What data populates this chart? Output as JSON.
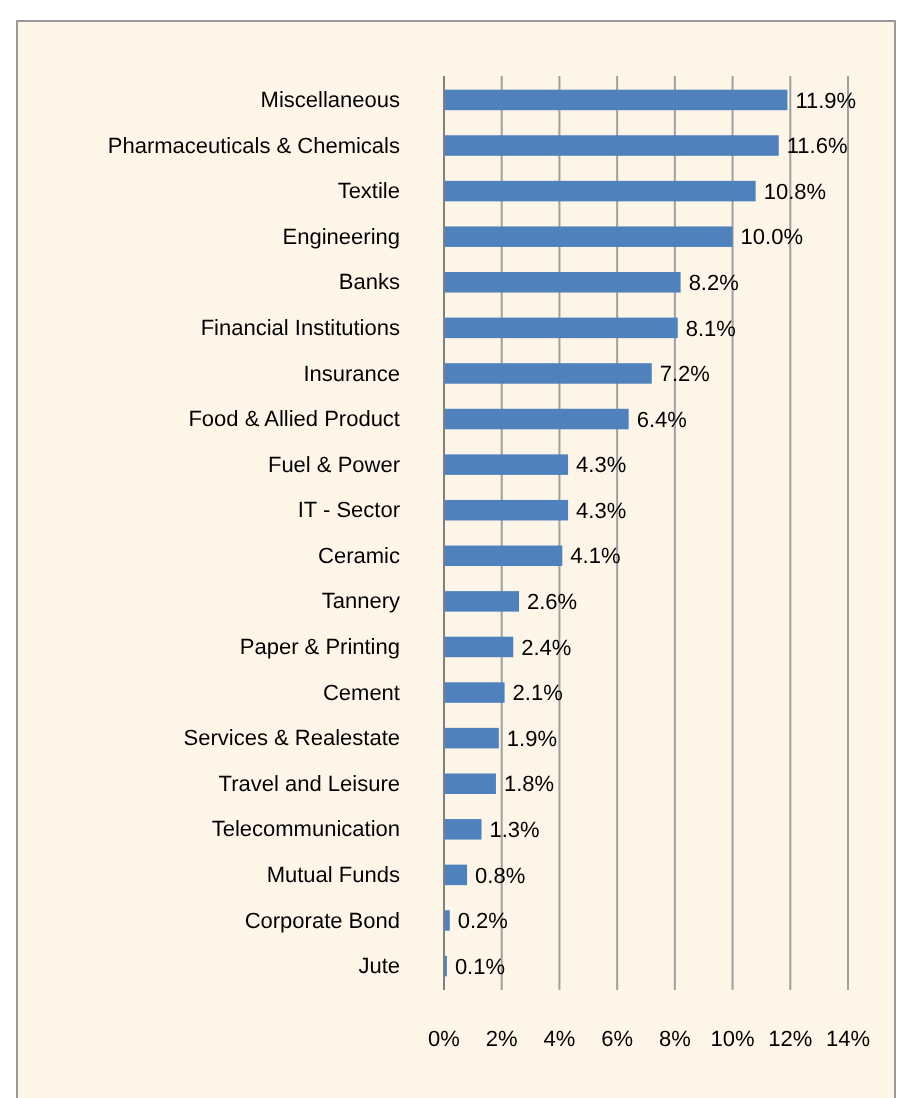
{
  "chart_data": {
    "type": "bar",
    "orientation": "horizontal",
    "categories": [
      "Miscellaneous",
      "Pharmaceuticals & Chemicals",
      "Textile",
      "Engineering",
      "Banks",
      "Financial Institutions",
      "Insurance",
      "Food & Allied Product",
      "Fuel & Power",
      "IT - Sector",
      "Ceramic",
      "Tannery",
      "Paper & Printing",
      "Cement",
      "Services & Realestate",
      "Travel and Leisure",
      "Telecommunication",
      "Mutual Funds",
      "Corporate Bond",
      "Jute"
    ],
    "values": [
      11.9,
      11.6,
      10.8,
      10.0,
      8.2,
      8.1,
      7.2,
      6.4,
      4.3,
      4.3,
      4.1,
      2.6,
      2.4,
      2.1,
      1.9,
      1.8,
      1.3,
      0.8,
      0.2,
      0.1
    ],
    "value_labels": [
      "11.9%",
      "11.6%",
      "10.8%",
      "10.0%",
      "8.2%",
      "8.1%",
      "7.2%",
      "6.4%",
      "4.3%",
      "4.3%",
      "4.1%",
      "2.6%",
      "2.4%",
      "2.1%",
      "1.9%",
      "1.8%",
      "1.3%",
      "0.8%",
      "0.2%",
      "0.1%"
    ],
    "color": "#4f81bd",
    "xlim": [
      0,
      14
    ],
    "xticks": [
      {
        "value": 0,
        "label": "0%"
      },
      {
        "value": 2,
        "label": "2%"
      },
      {
        "value": 4,
        "label": "4%"
      },
      {
        "value": 6,
        "label": "6%"
      },
      {
        "value": 8,
        "label": "8%"
      },
      {
        "value": 10,
        "label": "10%"
      },
      {
        "value": 12,
        "label": "12%"
      },
      {
        "value": 14,
        "label": "14%"
      }
    ],
    "grid": "x"
  }
}
